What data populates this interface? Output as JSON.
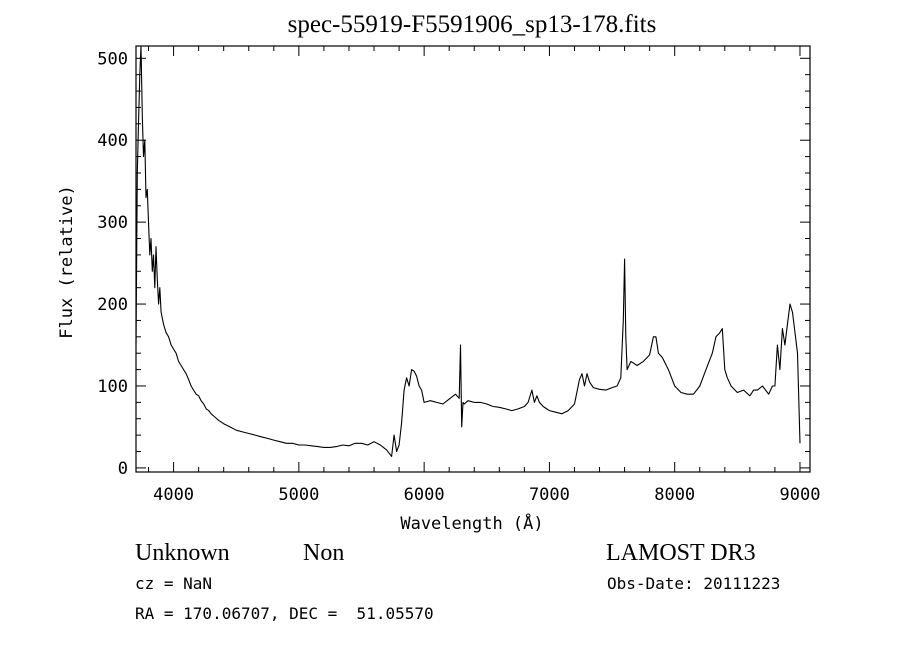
{
  "chart_data": {
    "type": "line",
    "title": "spec-55919-F5591906_sp13-178.fits",
    "xlabel": "Wavelength (Å)",
    "ylabel": "Flux (relative)",
    "xlim": [
      3700,
      9080
    ],
    "ylim": [
      -5,
      515
    ],
    "x_ticks": [
      4000,
      5000,
      6000,
      7000,
      8000,
      9000
    ],
    "y_ticks": [
      0,
      100,
      200,
      300,
      400,
      500
    ],
    "grid": false,
    "series": [
      {
        "x": [
          3700,
          3710,
          3720,
          3730,
          3740,
          3750,
          3760,
          3770,
          3780,
          3790,
          3800,
          3810,
          3820,
          3830,
          3840,
          3850,
          3860,
          3870,
          3880,
          3890,
          3900,
          3920,
          3940,
          3960,
          3980,
          4000,
          4020,
          4040,
          4060,
          4080,
          4100,
          4120,
          4140,
          4160,
          4180,
          4200,
          4220,
          4240,
          4260,
          4280,
          4300,
          4330,
          4360,
          4400,
          4450,
          4500,
          4550,
          4600,
          4650,
          4700,
          4750,
          4800,
          4850,
          4900,
          4950,
          5000,
          5050,
          5100,
          5150,
          5200,
          5250,
          5300,
          5350,
          5400,
          5450,
          5500,
          5550,
          5600,
          5650,
          5700,
          5720,
          5740,
          5760,
          5780,
          5800,
          5820,
          5840,
          5860,
          5880,
          5900,
          5920,
          5940,
          5960,
          5980,
          6000,
          6050,
          6100,
          6150,
          6200,
          6250,
          6280,
          6290,
          6300,
          6310,
          6320,
          6350,
          6400,
          6450,
          6500,
          6550,
          6600,
          6650,
          6700,
          6750,
          6800,
          6830,
          6860,
          6880,
          6900,
          6920,
          6950,
          7000,
          7050,
          7100,
          7150,
          7200,
          7240,
          7260,
          7280,
          7300,
          7320,
          7350,
          7400,
          7450,
          7500,
          7540,
          7570,
          7590,
          7600,
          7610,
          7620,
          7650,
          7700,
          7750,
          7800,
          7830,
          7850,
          7870,
          7900,
          7950,
          8000,
          8050,
          8100,
          8150,
          8200,
          8250,
          8300,
          8330,
          8360,
          8380,
          8400,
          8420,
          8450,
          8500,
          8550,
          8600,
          8630,
          8660,
          8700,
          8750,
          8780,
          8800,
          8820,
          8840,
          8860,
          8880,
          8900,
          8920,
          8940,
          8960,
          8980,
          9000
        ],
        "y": [
          150,
          360,
          420,
          480,
          515,
          430,
          380,
          400,
          330,
          340,
          300,
          260,
          280,
          240,
          260,
          220,
          270,
          230,
          200,
          220,
          190,
          175,
          165,
          160,
          150,
          145,
          140,
          130,
          125,
          120,
          115,
          108,
          100,
          95,
          90,
          88,
          82,
          78,
          72,
          70,
          66,
          62,
          58,
          54,
          50,
          46,
          44,
          42,
          40,
          38,
          36,
          34,
          32,
          30,
          30,
          28,
          28,
          27,
          26,
          25,
          25,
          26,
          28,
          27,
          30,
          30,
          28,
          32,
          28,
          22,
          18,
          14,
          40,
          20,
          28,
          55,
          95,
          110,
          100,
          120,
          118,
          112,
          100,
          95,
          80,
          82,
          80,
          78,
          84,
          90,
          85,
          150,
          50,
          80,
          78,
          82,
          80,
          80,
          78,
          75,
          74,
          72,
          70,
          72,
          75,
          80,
          95,
          80,
          88,
          80,
          75,
          70,
          68,
          66,
          70,
          78,
          108,
          115,
          100,
          115,
          105,
          98,
          96,
          95,
          98,
          100,
          110,
          180,
          255,
          160,
          120,
          130,
          125,
          130,
          138,
          160,
          160,
          140,
          135,
          120,
          100,
          92,
          90,
          90,
          100,
          120,
          140,
          160,
          165,
          170,
          120,
          110,
          100,
          92,
          95,
          88,
          95,
          95,
          100,
          90,
          100,
          100,
          150,
          120,
          170,
          150,
          175,
          200,
          190,
          165,
          140,
          30
        ]
      }
    ],
    "annotations": {
      "object_class": "Unknown",
      "subclass": "Non",
      "survey": "LAMOST DR3",
      "cz": "cz = NaN",
      "obs_date": "Obs-Date: 20111223",
      "coords": "RA = 170.06707, DEC =  51.05570"
    }
  }
}
